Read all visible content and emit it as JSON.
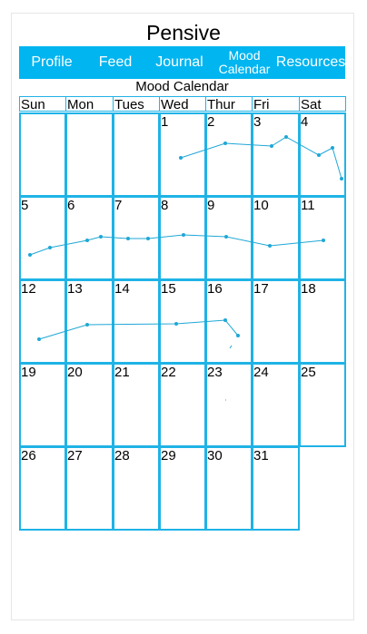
{
  "app": {
    "title": "Pensive"
  },
  "nav": [
    {
      "label": "Profile",
      "name": "nav-profile"
    },
    {
      "label": "Feed",
      "name": "nav-feed"
    },
    {
      "label": "Journal",
      "name": "nav-journal"
    },
    {
      "label": "Mood Calendar",
      "name": "nav-mood-calendar"
    },
    {
      "label": "Resources",
      "name": "nav-resources"
    }
  ],
  "calendar": {
    "title": "Mood Calendar",
    "weekdays": [
      "Sun",
      "Mon",
      "Tues",
      "Wed",
      "Thur",
      "Fri",
      "Sat"
    ],
    "first_weekday_index": 3,
    "days_in_month": 31
  },
  "colors": {
    "accent": "#00b5f0",
    "grid": "#1fb3e6",
    "line": "#1fa7d6"
  }
}
